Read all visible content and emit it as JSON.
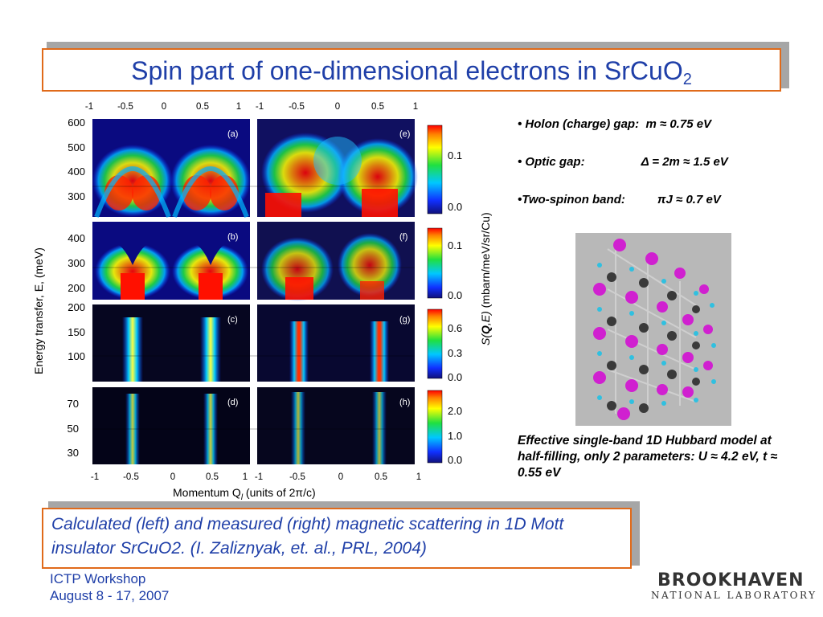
{
  "slide": {
    "title_main": "Spin part of one-dimensional electrons in SrCuO",
    "title_sub": "2"
  },
  "figure": {
    "top_ticks_left": [
      "-1",
      "-0.5",
      "0",
      "0.5",
      "1"
    ],
    "top_ticks_right": [
      "-1",
      "-0.5",
      "0",
      "0.5",
      "1"
    ],
    "bottom_ticks_left": [
      "-1",
      "-0.5",
      "0",
      "0.5",
      "1"
    ],
    "bottom_ticks_right": [
      "-1",
      "-0.5",
      "0",
      "0.5",
      "1"
    ],
    "row_ticks": [
      [
        "600",
        "500",
        "400",
        "300"
      ],
      [
        "400",
        "300",
        "200"
      ],
      [
        "200",
        "150",
        "100"
      ],
      [
        "70",
        "50",
        "30"
      ]
    ],
    "panel_labels_left": [
      "(a)",
      "(b)",
      "(c)",
      "(d)"
    ],
    "panel_labels_right": [
      "(e)",
      "(f)",
      "(g)",
      "(h)"
    ],
    "colorbar_ticks": [
      [
        "0.1",
        "0.0"
      ],
      [
        "0.1",
        "0.0"
      ],
      [
        "0.6",
        "0.3",
        "0.0"
      ],
      [
        "2.0",
        "1.0",
        "0.0"
      ]
    ],
    "y_label": "Energy transfer, E, (meV)",
    "x_label_pre": "Momentum Q",
    "x_label_sub": "l",
    "x_label_post": " (units of 2π/c)",
    "cb_label_pre": "S(",
    "cb_label_q": "Q",
    "cb_label_mid": ",E)",
    "cb_label_post": " (mbarn/meV/sr/Cu)"
  },
  "bullets": [
    {
      "prefix": "• ",
      "label": "Holon (charge) gap:",
      "value": "m ≈ 0.75 eV"
    },
    {
      "prefix": "• ",
      "label": "Optic gap:",
      "value": "Δ = 2m ≈ 1.5 eV"
    },
    {
      "prefix": "•",
      "label": "Two-spinon band:",
      "value": "πJ ≈ 0.7 eV"
    }
  ],
  "model_caption": "Effective single-band 1D Hubbard model at half-filling, only 2 parameters: U ≈ 4.2 eV, t ≈ 0.55 eV",
  "bottom_caption": "Calculated (left) and measured (right) magnetic scattering in 1D Mott insulator SrCuO2. (I. Zaliznyak, et. al., PRL, 2004)",
  "footer": {
    "line1": "ICTP Workshop",
    "line2": "August 8 - 17, 2007"
  },
  "logo": {
    "main": "BROOKHAVEN",
    "sub": "NATIONAL LABORATORY"
  },
  "colors": {
    "title_blue": "#1f3fa8",
    "box_border": "#e06a1a",
    "shadow_gray": "#a6a6a6",
    "chain_magenta": "#d020d0",
    "chain_gray": "#3a3a3a",
    "chain_cyan": "#30c0e0"
  }
}
